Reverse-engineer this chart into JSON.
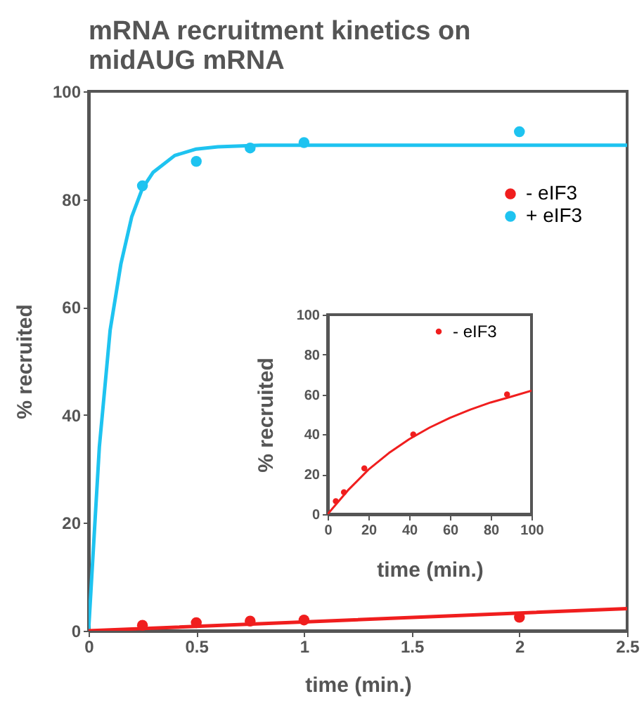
{
  "chart_data": [
    {
      "type": "scatter",
      "title": "mRNA recruitment kinetics on midAUG mRNA",
      "xlabel": "time (min.)",
      "ylabel": "% recruited",
      "xlim": [
        0,
        2.5
      ],
      "ylim": [
        0,
        100
      ],
      "xticks": [
        0,
        0.5,
        1,
        1.5,
        2,
        2.5
      ],
      "yticks": [
        0,
        20,
        40,
        60,
        80,
        100
      ],
      "legend": "top right",
      "marker": "circle",
      "series": [
        {
          "type": "line",
          "marker": "none",
          "color": "#1ec3f0",
          "x": [
            0,
            0.05,
            0.1,
            0.15,
            0.2,
            0.25,
            0.3,
            0.4,
            0.5,
            0.6,
            0.8,
            1,
            1.5,
            2.5
          ],
          "values": [
            0,
            34.1,
            55.7,
            68,
            76.7,
            82,
            85,
            88.1,
            89.3,
            89.7,
            90,
            90,
            90,
            90
          ]
        },
        {
          "type": "line",
          "marker": "none",
          "color": "#f01e1e",
          "x": [
            0,
            2.5
          ],
          "values": [
            0,
            4.1
          ]
        },
        {
          "name": "-  eIF3",
          "color": "#f01e1e",
          "x": [
            0.25,
            0.5,
            0.75,
            1,
            2
          ],
          "values": [
            1,
            1.5,
            1.8,
            2,
            2.5
          ]
        },
        {
          "name": "+ eIF3",
          "color": "#1ec3f0",
          "x": [
            0.25,
            0.5,
            0.75,
            1,
            2
          ],
          "values": [
            82.5,
            87,
            89.5,
            90.5,
            92.5
          ]
        }
      ]
    },
    {
      "type": "scatter",
      "xlabel": "time (min.)",
      "ylabel": "% recruited",
      "xlim": [
        0,
        100
      ],
      "ylim": [
        0,
        100
      ],
      "xticks": [
        0,
        20,
        40,
        60,
        80,
        100
      ],
      "yticks": [
        0,
        20,
        40,
        60,
        80,
        100
      ],
      "legend": "top right",
      "marker": "circle",
      "series": [
        {
          "type": "line",
          "marker": "none",
          "color": "#f01e1e",
          "x": [
            0,
            10,
            20,
            30,
            40,
            50,
            60,
            70,
            80,
            90,
            100
          ],
          "values": [
            0,
            12,
            22.3,
            30.6,
            37.6,
            43.4,
            48.3,
            52.4,
            56,
            58.9,
            61.9
          ]
        },
        {
          "name": "-  eIF3",
          "color": "#f01e1e",
          "x": [
            4,
            8,
            18,
            42,
            88
          ],
          "values": [
            6.5,
            11,
            23,
            40,
            60
          ]
        }
      ]
    }
  ]
}
